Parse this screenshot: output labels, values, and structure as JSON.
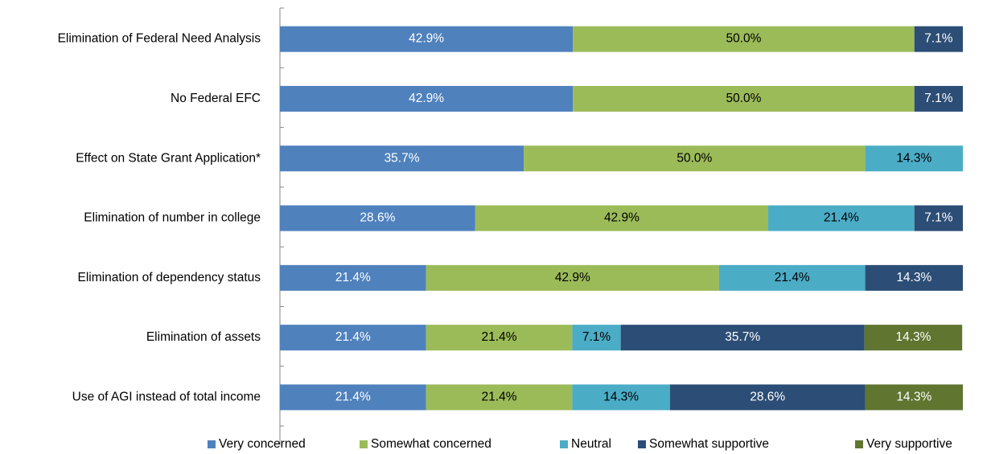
{
  "chart_data": {
    "type": "stacked-barh",
    "categories": [
      "Elimination of Federal Need Analysis",
      "No Federal EFC",
      "Effect on State Grant Application*",
      "Elimination of number in college",
      "Elimination of dependency status",
      "Elimination of assets",
      "Use of AGI instead of total income"
    ],
    "xlim": [
      0,
      100
    ],
    "series": [
      {
        "name": "Very concerned",
        "color": "#4f81bd",
        "values": [
          42.9,
          42.9,
          35.7,
          28.6,
          21.4,
          21.4,
          21.4
        ],
        "value_labels": [
          "42.9%",
          "42.9%",
          "35.7%",
          "28.6%",
          "21.4%",
          "21.4%",
          "21.4%"
        ]
      },
      {
        "name": "Somewhat concerned",
        "color": "#9bbb59",
        "values": [
          50.0,
          50.0,
          50.0,
          42.9,
          42.9,
          21.4,
          21.4
        ],
        "value_labels": [
          "50.0%",
          "50.0%",
          "50.0%",
          "42.9%",
          "42.9%",
          "21.4%",
          "21.4%"
        ]
      },
      {
        "name": "Neutral",
        "color": "#4bacc6",
        "values": [
          0,
          0,
          14.3,
          21.4,
          21.4,
          7.1,
          14.3
        ],
        "value_labels": [
          null,
          null,
          "14.3%",
          "21.4%",
          "21.4%",
          "7.1%",
          "14.3%"
        ]
      },
      {
        "name": "Somewhat supportive",
        "color": "#2c4d75",
        "values": [
          7.1,
          7.1,
          0,
          7.1,
          14.3,
          35.7,
          28.6
        ],
        "value_labels": [
          "7.1%",
          "7.1%",
          null,
          "7.1%",
          "14.3%",
          "35.7%",
          "28.6%"
        ]
      },
      {
        "name": "Very supportive",
        "color": "#5f7530",
        "values": [
          0,
          0,
          0,
          0,
          0,
          14.3,
          14.3
        ],
        "value_labels": [
          null,
          null,
          null,
          null,
          null,
          "14.3%",
          "14.3%"
        ]
      }
    ],
    "legend": "bottom"
  }
}
